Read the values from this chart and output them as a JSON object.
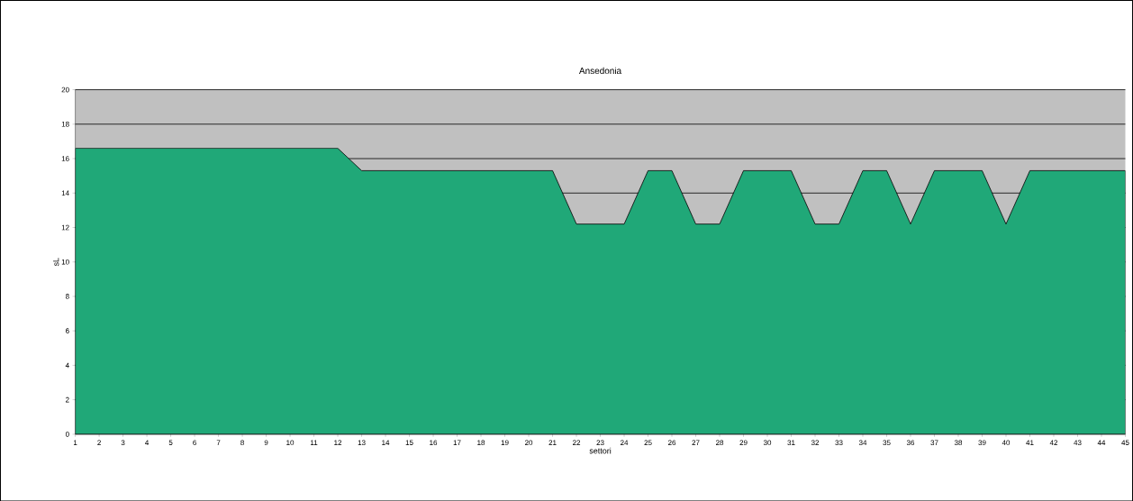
{
  "chart_data": {
    "type": "area",
    "title": "Ansedonia",
    "xlabel": "settori",
    "ylabel": "sL",
    "categories": [
      "1",
      "2",
      "3",
      "4",
      "5",
      "6",
      "7",
      "8",
      "9",
      "10",
      "11",
      "12",
      "13",
      "14",
      "15",
      "16",
      "17",
      "18",
      "19",
      "20",
      "21",
      "22",
      "23",
      "24",
      "25",
      "26",
      "27",
      "28",
      "29",
      "30",
      "31",
      "32",
      "33",
      "34",
      "35",
      "36",
      "37",
      "38",
      "39",
      "40",
      "41",
      "42",
      "43",
      "44",
      "45"
    ],
    "series": [
      {
        "color": "#20a878",
        "values": [
          16.6,
          16.6,
          16.6,
          16.6,
          16.6,
          16.6,
          16.6,
          16.6,
          16.6,
          16.6,
          16.6,
          16.6,
          15.3,
          15.3,
          15.3,
          15.3,
          15.3,
          15.3,
          15.3,
          15.3,
          15.3,
          12.2,
          12.2,
          12.2,
          15.3,
          15.3,
          12.2,
          12.2,
          15.3,
          15.3,
          15.3,
          12.2,
          12.2,
          15.3,
          15.3,
          12.2,
          15.3,
          15.3,
          15.3,
          12.2,
          15.3,
          15.3,
          15.3,
          15.3,
          15.3
        ]
      }
    ],
    "ylim": [
      0,
      20
    ],
    "yticks": [
      0,
      2,
      4,
      6,
      8,
      10,
      12,
      14,
      16,
      18,
      20
    ],
    "grid": "y"
  }
}
